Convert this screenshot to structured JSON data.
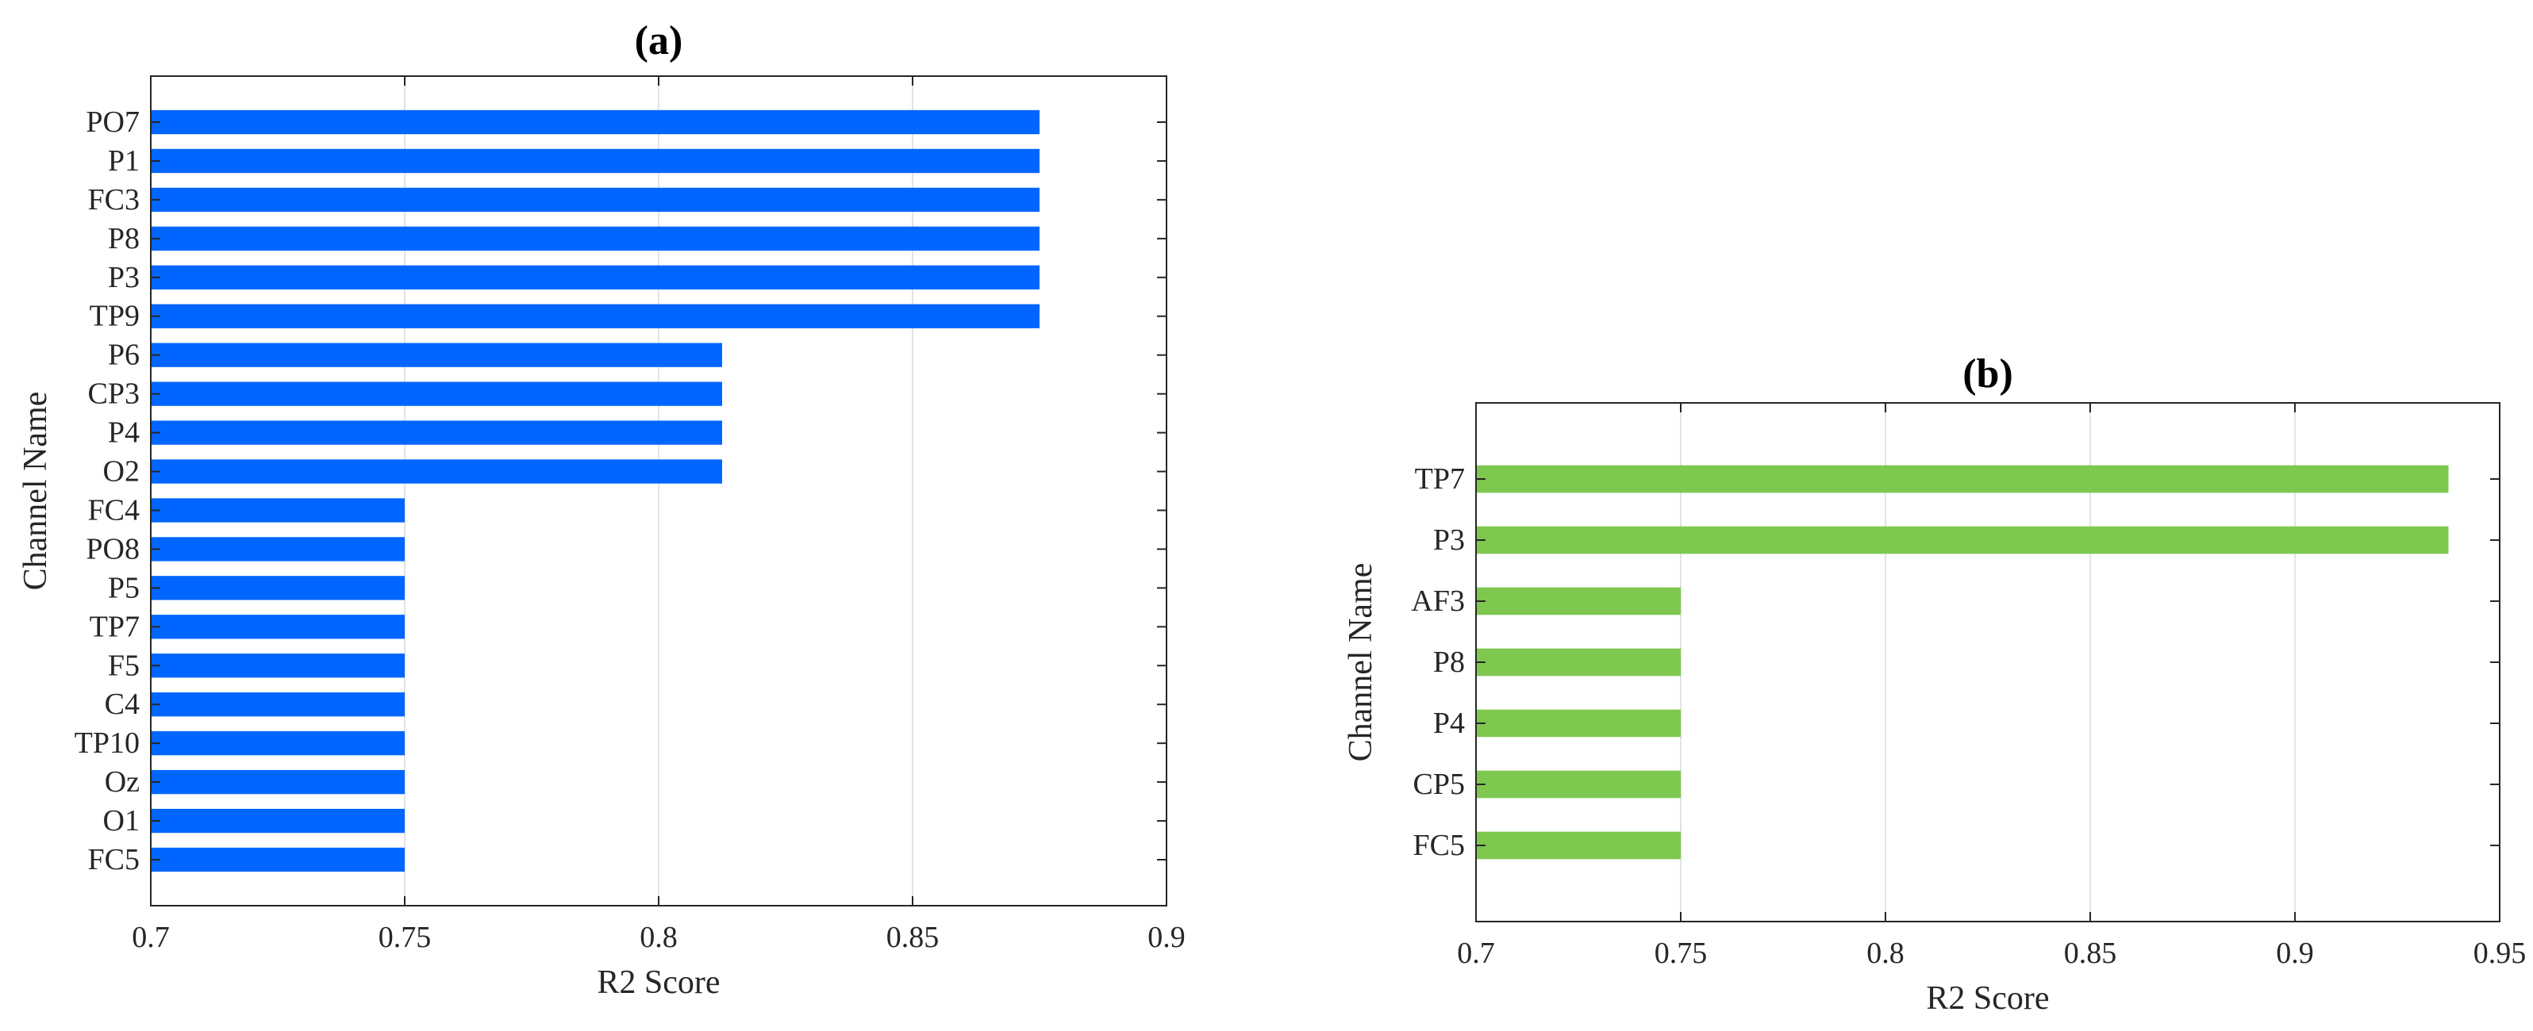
{
  "chart_data": [
    {
      "type": "bar",
      "orientation": "horizontal",
      "title": "(a)",
      "xlabel": "R2 Score",
      "ylabel": "Channel Name",
      "xlim": [
        0.7,
        0.9
      ],
      "xticks": [
        0.7,
        0.75,
        0.8,
        0.85,
        0.9
      ],
      "xtick_labels": [
        "0.7",
        "0.75",
        "0.8",
        "0.85",
        "0.9"
      ],
      "grid": "vertical",
      "categories": [
        "PO7",
        "P1",
        "FC3",
        "P8",
        "P3",
        "TP9",
        "P6",
        "CP3",
        "P4",
        "O2",
        "FC4",
        "PO8",
        "P5",
        "TP7",
        "F5",
        "C4",
        "TP10",
        "Oz",
        "O1",
        "FC5"
      ],
      "values": [
        0.875,
        0.875,
        0.875,
        0.875,
        0.875,
        0.875,
        0.8125,
        0.8125,
        0.8125,
        0.8125,
        0.75,
        0.75,
        0.75,
        0.75,
        0.75,
        0.75,
        0.75,
        0.75,
        0.75,
        0.75
      ],
      "bar_color": "#0066ff"
    },
    {
      "type": "bar",
      "orientation": "horizontal",
      "title": "(b)",
      "xlabel": "R2 Score",
      "ylabel": "Channel Name",
      "xlim": [
        0.7,
        0.95
      ],
      "xticks": [
        0.7,
        0.75,
        0.8,
        0.85,
        0.9,
        0.95
      ],
      "xtick_labels": [
        "0.7",
        "0.75",
        "0.8",
        "0.85",
        "0.9",
        "0.95"
      ],
      "grid": "vertical",
      "categories": [
        "TP7",
        "P3",
        "AF3",
        "P8",
        "P4",
        "CP5",
        "FC5"
      ],
      "values": [
        0.9375,
        0.9375,
        0.75,
        0.75,
        0.75,
        0.75,
        0.75
      ],
      "bar_color": "#7ec850"
    }
  ]
}
